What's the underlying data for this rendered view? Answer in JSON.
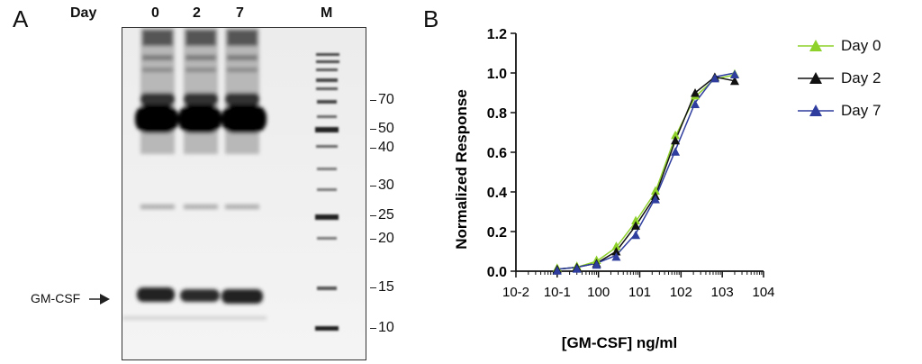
{
  "panel_a": {
    "letter": "A",
    "day_label": "Day",
    "lanes": [
      "0",
      "2",
      "7"
    ],
    "marker_label": "M",
    "marker_weights": [
      "70",
      "50",
      "40",
      "30",
      "25",
      "20",
      "15",
      "10"
    ],
    "arrow_label": "GM-CSF"
  },
  "panel_b": {
    "letter": "B",
    "legend": [
      {
        "name": "Day 0",
        "color": "#8ed12a"
      },
      {
        "name": "Day 2",
        "color": "#111111"
      },
      {
        "name": "Day 7",
        "color": "#2e3d9e"
      }
    ]
  },
  "chart_data": {
    "type": "scatter",
    "xscale": "log",
    "xlabel": "[GM-CSF] ng/ml",
    "ylabel": "Normalized Response",
    "xlim": [
      0.01,
      10000
    ],
    "ylim": [
      0.0,
      1.2
    ],
    "x_ticks": [
      "10-2",
      "10-1",
      "100",
      "101",
      "102",
      "103",
      "104"
    ],
    "y_ticks": [
      "0.0",
      "0.2",
      "0.4",
      "0.6",
      "0.8",
      "1.0",
      "1.2"
    ],
    "series": [
      {
        "name": "Day 0",
        "color": "#8ed12a",
        "x": [
          0.1,
          0.3,
          0.9,
          2.7,
          8,
          24,
          73,
          220,
          660,
          2000
        ],
        "y": [
          0.01,
          0.02,
          0.05,
          0.12,
          0.25,
          0.4,
          0.68,
          0.88,
          0.97,
          0.99
        ]
      },
      {
        "name": "Day 2",
        "color": "#111111",
        "x": [
          0.1,
          0.3,
          0.9,
          2.7,
          8,
          24,
          73,
          220,
          660,
          2000
        ],
        "y": [
          0.01,
          0.02,
          0.04,
          0.1,
          0.23,
          0.38,
          0.66,
          0.9,
          0.98,
          0.96
        ]
      },
      {
        "name": "Day 7",
        "color": "#2e3d9e",
        "x": [
          0.1,
          0.3,
          0.9,
          2.7,
          8,
          24,
          73,
          220,
          660,
          2000
        ],
        "y": [
          0.01,
          0.02,
          0.04,
          0.08,
          0.19,
          0.37,
          0.61,
          0.85,
          0.98,
          1.0
        ]
      }
    ]
  }
}
